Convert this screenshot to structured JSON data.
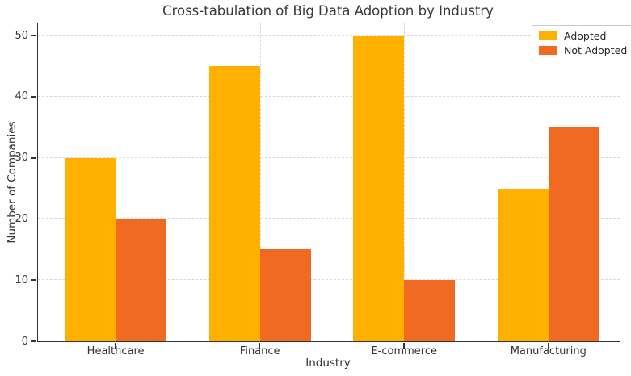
{
  "chart_data": {
    "type": "bar",
    "title": "Cross-tabulation of Big Data Adoption by Industry",
    "xlabel": "Industry",
    "ylabel": "Number of Companies",
    "categories": [
      "Healthcare",
      "Finance",
      "E-commerce",
      "Manufacturing"
    ],
    "series": [
      {
        "name": "Adopted",
        "color": "#FFB000",
        "values": [
          30,
          45,
          50,
          25
        ]
      },
      {
        "name": "Not Adopted",
        "color": "#F16A22",
        "values": [
          20,
          15,
          10,
          35
        ]
      }
    ],
    "yticks": [
      0,
      10,
      20,
      30,
      40,
      50
    ],
    "ylim": [
      0,
      52
    ],
    "grid": "dashed-both-axes",
    "legend_position": "upper-right",
    "colors": {
      "adopted": "#FFB000",
      "not_adopted": "#F16A22",
      "gridline": "#d9d9d9",
      "spine": "#333333",
      "text": "#333333"
    }
  }
}
